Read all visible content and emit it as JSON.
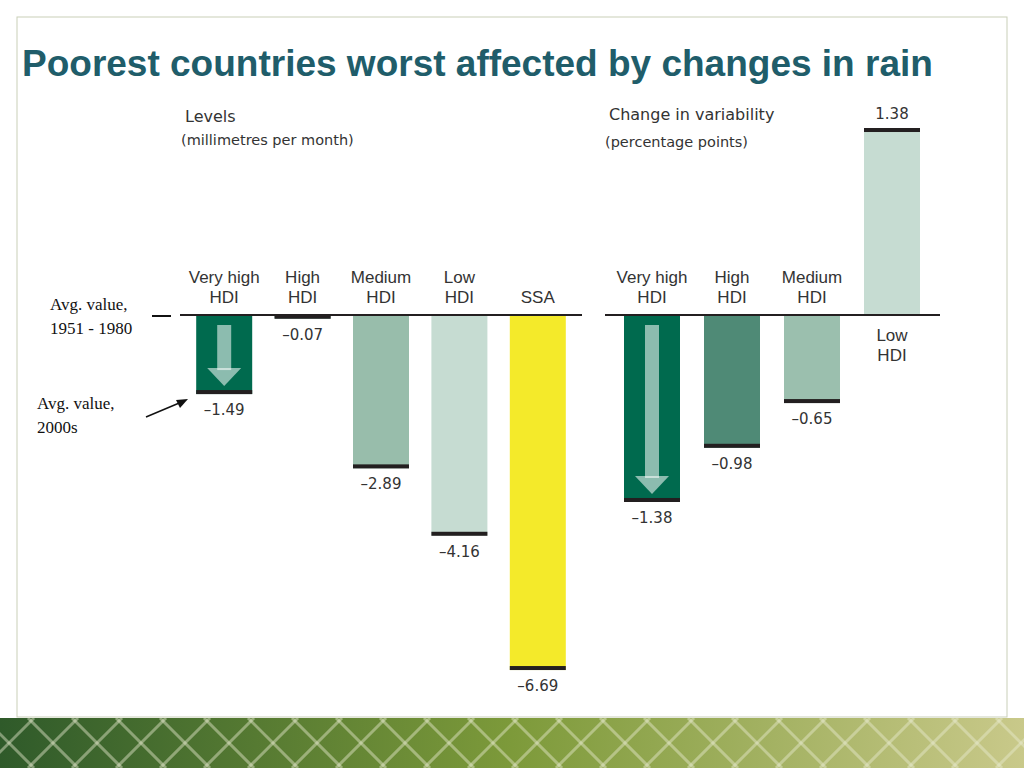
{
  "title": "Poorest countries worst affected by changes in rain",
  "annotations": [
    "Avg. value, 1951 - 1980",
    "Avg. value, 2000s"
  ],
  "chart_data": [
    {
      "type": "bar",
      "title": "Levels",
      "subtitle": "(millimetres per month)",
      "categories": [
        "Very high HDI",
        "High HDI",
        "Medium HDI",
        "Low HDI",
        "SSA"
      ],
      "values": [
        -1.49,
        -0.07,
        -2.89,
        -4.16,
        -6.69
      ],
      "value_labels": [
        "–1.49",
        "–0.07",
        "–2.89",
        "–4.16",
        "–6.69"
      ],
      "colors": [
        "#006a4e",
        "#5b8c7a",
        "#98bdab",
        "#c6dcd2",
        "#f4ea2a"
      ],
      "ylim": [
        -7,
        0
      ],
      "data_labels": true,
      "tick_labels": false,
      "grid": false
    },
    {
      "type": "bar",
      "title": "Change in variability",
      "subtitle": "(percentage points)",
      "categories": [
        "Very high HDI",
        "High HDI",
        "Medium HDI",
        "Low HDI"
      ],
      "values": [
        -1.38,
        -0.98,
        -0.65,
        1.38
      ],
      "value_labels": [
        "–1.38",
        "–0.98",
        "–0.65",
        "1.38"
      ],
      "colors": [
        "#006a4e",
        "#4f8a76",
        "#9bbfae",
        "#c6dcd2"
      ],
      "ylim": [
        -1.5,
        1.5
      ],
      "data_labels": true,
      "tick_labels": false,
      "grid": false
    }
  ]
}
